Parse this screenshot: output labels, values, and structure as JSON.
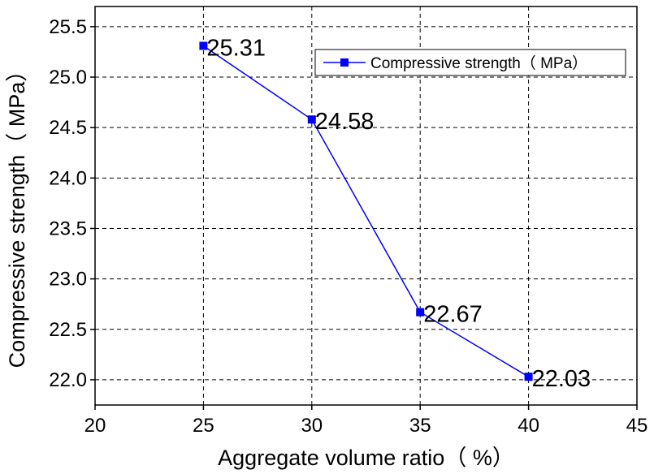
{
  "chart_data": {
    "type": "line",
    "title": "",
    "xlabel": "Aggregate volume ratio（ %）",
    "ylabel": "Compressive strength（ MPa）",
    "x": [
      25,
      30,
      35,
      40
    ],
    "series": [
      {
        "name": "Compressive strength（ MPa）",
        "values": [
          25.31,
          24.58,
          22.67,
          22.03
        ],
        "labels": [
          "25.31",
          "24.58",
          "22.67",
          "22.03"
        ],
        "color": "#0000ff",
        "marker": "square"
      }
    ],
    "xlim": [
      20,
      45
    ],
    "ylim": [
      21.75,
      25.7
    ],
    "xticks": [
      20,
      25,
      30,
      35,
      40,
      45
    ],
    "xtick_labels": [
      "20",
      "25",
      "30",
      "35",
      "40",
      "45"
    ],
    "yticks": [
      22.0,
      22.5,
      23.0,
      23.5,
      24.0,
      24.5,
      25.0,
      25.5
    ],
    "ytick_labels": [
      "22.0",
      "22.5",
      "23.0",
      "23.5",
      "24.0",
      "24.5",
      "25.0",
      "25.5"
    ],
    "grid": true,
    "legend": "top-right"
  }
}
